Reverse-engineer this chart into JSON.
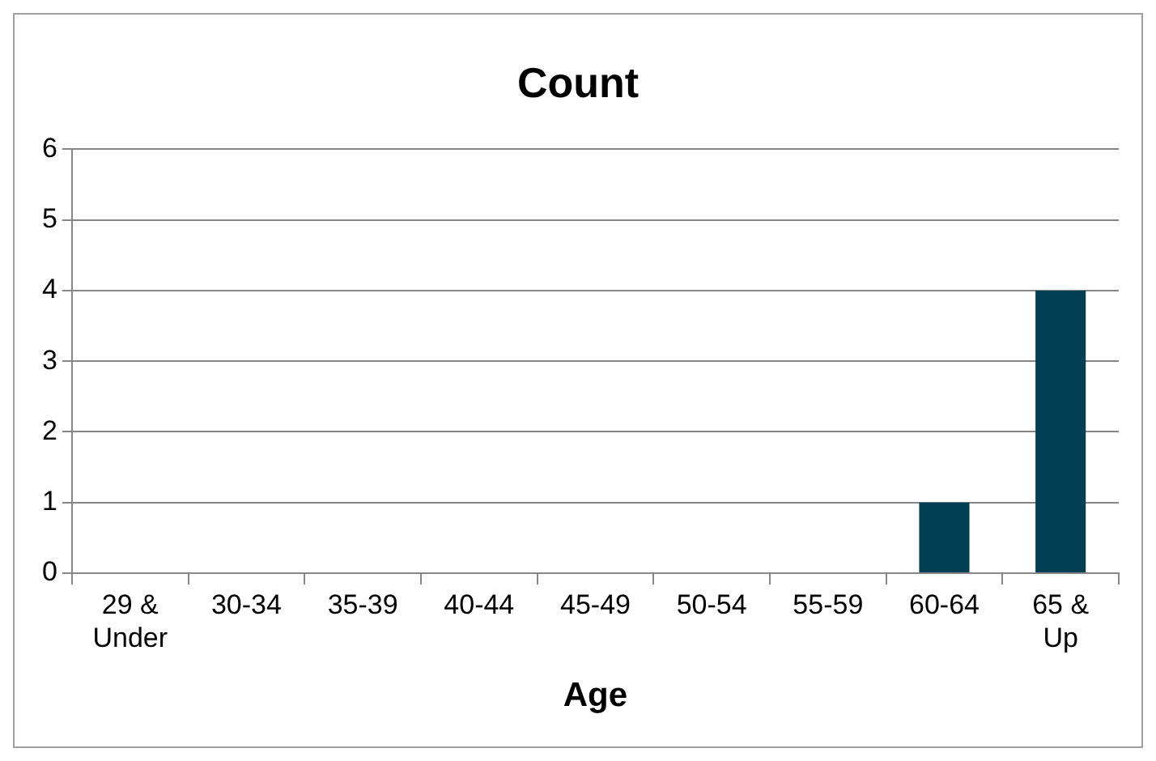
{
  "chart_data": {
    "type": "bar",
    "title": "Count",
    "xlabel": "Age",
    "categories": [
      "29 & Under",
      "30-34",
      "35-39",
      "40-44",
      "45-49",
      "50-54",
      "55-59",
      "60-64",
      "65 & Up"
    ],
    "values": [
      0,
      0,
      0,
      0,
      0,
      0,
      0,
      1,
      4
    ],
    "color": "#003f54",
    "ylim": [
      0,
      6
    ],
    "yticks": [
      0,
      1,
      2,
      3,
      4,
      5,
      6
    ],
    "grid": "y",
    "legend": false
  }
}
